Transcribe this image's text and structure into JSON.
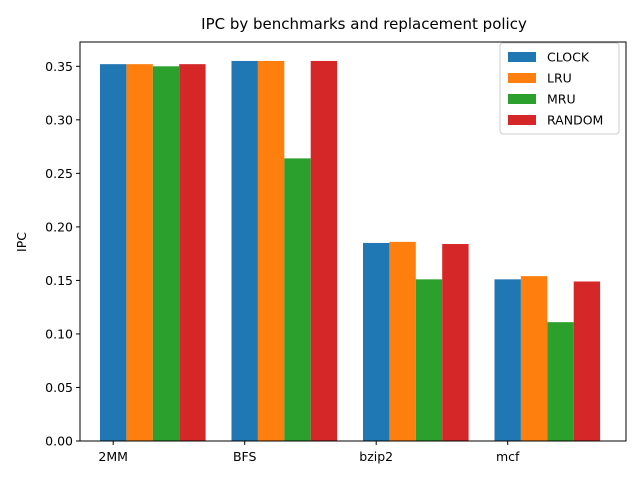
{
  "chart_data": {
    "type": "bar",
    "title": "IPC by benchmarks and replacement policy",
    "xlabel": "",
    "ylabel": "IPC",
    "categories": [
      "2MM",
      "BFS",
      "bzip2",
      "mcf"
    ],
    "series": [
      {
        "name": "CLOCK",
        "color": "#1f77b4",
        "values": [
          0.352,
          0.355,
          0.185,
          0.151
        ]
      },
      {
        "name": "LRU",
        "color": "#ff7f0e",
        "values": [
          0.352,
          0.355,
          0.186,
          0.154
        ]
      },
      {
        "name": "MRU",
        "color": "#2ca02c",
        "values": [
          0.35,
          0.264,
          0.151,
          0.111
        ]
      },
      {
        "name": "RANDOM",
        "color": "#d62728",
        "values": [
          0.352,
          0.355,
          0.184,
          0.149
        ]
      }
    ],
    "ylim": [
      0,
      0.3727
    ],
    "yticks": [
      "0.00",
      "0.05",
      "0.10",
      "0.15",
      "0.20",
      "0.25",
      "0.30",
      "0.35"
    ],
    "legend_position": "top-right",
    "grid": false
  }
}
